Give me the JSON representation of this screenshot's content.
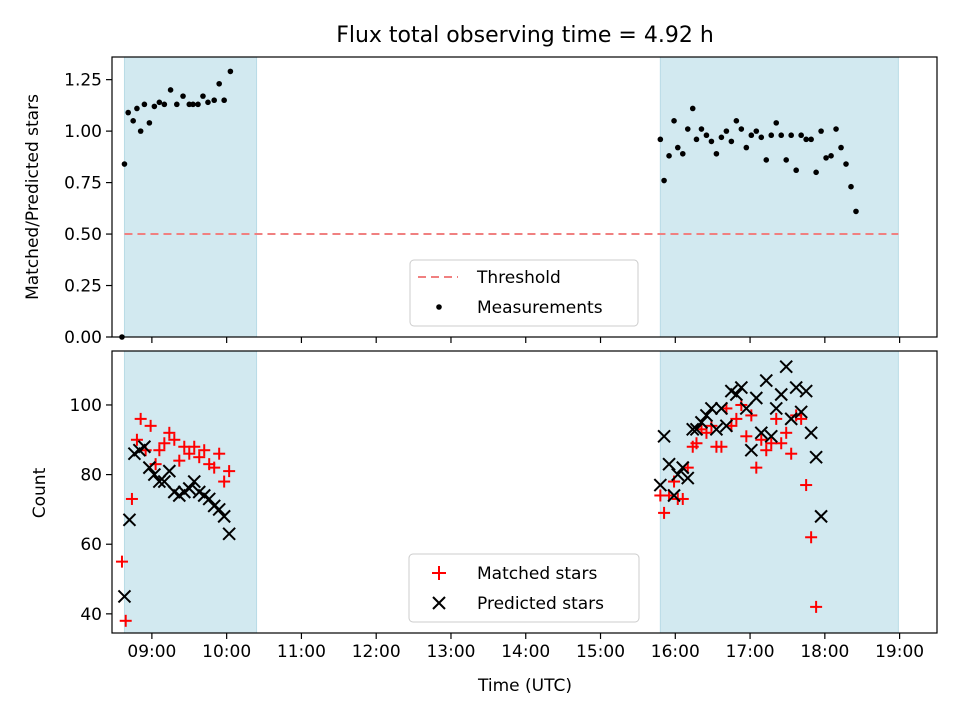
{
  "title": "Flux total observing time = 4.92 h",
  "chart_data": [
    {
      "type": "scatter",
      "panel": "top",
      "title": "Flux total observing time = 4.92 h",
      "xlabel": "",
      "ylabel": "Matched/Predicted stars",
      "xlim": [
        "08:28",
        "19:30"
      ],
      "ylim": [
        0,
        1.36
      ],
      "yticks": [
        "0.00",
        "0.25",
        "0.50",
        "0.75",
        "1.00",
        "1.25"
      ],
      "yticks_values": [
        0,
        0.25,
        0.5,
        0.75,
        1.0,
        1.25
      ],
      "grid": false,
      "legend_placement": "bottom-center",
      "shaded_spans": [
        [
          "08:38",
          "10:24"
        ],
        [
          "15:48",
          "18:59"
        ]
      ],
      "span_color": "#d2e9f0",
      "threshold": {
        "name": "Threshold",
        "value": 0.5,
        "color": "#f08080"
      },
      "series": [
        {
          "name": "Measurements",
          "marker": "dot",
          "color": "#000000",
          "points": [
            [
              "08:36",
              0.0
            ],
            [
              "08:38",
              0.84
            ],
            [
              "08:41",
              1.09
            ],
            [
              "08:45",
              1.05
            ],
            [
              "08:48",
              1.11
            ],
            [
              "08:51",
              1.0
            ],
            [
              "08:54",
              1.13
            ],
            [
              "08:58",
              1.04
            ],
            [
              "09:02",
              1.12
            ],
            [
              "09:06",
              1.14
            ],
            [
              "09:10",
              1.13
            ],
            [
              "09:15",
              1.2
            ],
            [
              "09:20",
              1.13
            ],
            [
              "09:25",
              1.17
            ],
            [
              "09:30",
              1.13
            ],
            [
              "09:33",
              1.13
            ],
            [
              "09:37",
              1.13
            ],
            [
              "09:41",
              1.17
            ],
            [
              "09:45",
              1.14
            ],
            [
              "09:50",
              1.15
            ],
            [
              "09:54",
              1.23
            ],
            [
              "09:58",
              1.15
            ],
            [
              "10:03",
              1.29
            ],
            [
              "15:48",
              0.96
            ],
            [
              "15:51",
              0.76
            ],
            [
              "15:55",
              0.88
            ],
            [
              "15:59",
              1.05
            ],
            [
              "16:02",
              0.92
            ],
            [
              "16:06",
              0.89
            ],
            [
              "16:10",
              1.01
            ],
            [
              "16:14",
              1.11
            ],
            [
              "16:17",
              0.96
            ],
            [
              "16:21",
              1.01
            ],
            [
              "16:25",
              0.98
            ],
            [
              "16:29",
              0.95
            ],
            [
              "16:33",
              0.89
            ],
            [
              "16:37",
              0.97
            ],
            [
              "16:41",
              1.0
            ],
            [
              "16:45",
              0.95
            ],
            [
              "16:49",
              1.05
            ],
            [
              "16:53",
              1.01
            ],
            [
              "16:57",
              0.92
            ],
            [
              "17:01",
              0.98
            ],
            [
              "17:05",
              1.0
            ],
            [
              "17:09",
              0.97
            ],
            [
              "17:13",
              0.86
            ],
            [
              "17:17",
              0.98
            ],
            [
              "17:21",
              1.04
            ],
            [
              "17:25",
              0.98
            ],
            [
              "17:29",
              0.86
            ],
            [
              "17:33",
              0.98
            ],
            [
              "17:37",
              0.81
            ],
            [
              "17:41",
              0.98
            ],
            [
              "17:45",
              0.96
            ],
            [
              "17:49",
              0.96
            ],
            [
              "17:53",
              0.8
            ],
            [
              "17:57",
              1.0
            ],
            [
              "18:01",
              0.87
            ],
            [
              "18:05",
              0.88
            ],
            [
              "18:09",
              1.01
            ],
            [
              "18:13",
              0.92
            ],
            [
              "18:17",
              0.84
            ],
            [
              "18:21",
              0.73
            ],
            [
              "18:25",
              0.61
            ]
          ]
        }
      ],
      "legend": [
        {
          "label": "Threshold",
          "kind": "dashed-line",
          "color": "#f08080"
        },
        {
          "label": "Measurements",
          "kind": "dot",
          "color": "#000000"
        }
      ]
    },
    {
      "type": "scatter",
      "panel": "bottom",
      "xlabel": "Time (UTC)",
      "ylabel": "Count",
      "xlim": [
        "08:28",
        "19:30"
      ],
      "ylim": [
        34.5,
        115.5
      ],
      "yticks": [
        "40",
        "60",
        "80",
        "100"
      ],
      "yticks_values": [
        40,
        60,
        80,
        100
      ],
      "xticks": [
        "09:00",
        "10:00",
        "11:00",
        "12:00",
        "13:00",
        "14:00",
        "15:00",
        "16:00",
        "17:00",
        "18:00",
        "19:00"
      ],
      "grid": false,
      "legend_placement": "bottom-center",
      "shaded_spans": [
        [
          "08:38",
          "10:24"
        ],
        [
          "15:48",
          "18:59"
        ]
      ],
      "span_color": "#d2e9f0",
      "series": [
        {
          "name": "Matched stars",
          "marker": "plus",
          "color": "#ff0000",
          "points": [
            [
              "08:36",
              55
            ],
            [
              "08:39",
              38
            ],
            [
              "08:44",
              73
            ],
            [
              "08:48",
              90
            ],
            [
              "08:51",
              96
            ],
            [
              "08:55",
              87
            ],
            [
              "08:59",
              94
            ],
            [
              "09:03",
              83
            ],
            [
              "09:06",
              87
            ],
            [
              "09:10",
              89
            ],
            [
              "09:14",
              92
            ],
            [
              "09:18",
              90
            ],
            [
              "09:22",
              84
            ],
            [
              "09:26",
              88
            ],
            [
              "09:30",
              86
            ],
            [
              "09:34",
              88
            ],
            [
              "09:38",
              85
            ],
            [
              "09:42",
              87
            ],
            [
              "09:46",
              83
            ],
            [
              "09:50",
              82
            ],
            [
              "09:54",
              86
            ],
            [
              "09:58",
              78
            ],
            [
              "10:02",
              81
            ],
            [
              "15:48",
              74
            ],
            [
              "15:51",
              69
            ],
            [
              "15:55",
              74
            ],
            [
              "15:59",
              78
            ],
            [
              "16:02",
              73
            ],
            [
              "16:06",
              73
            ],
            [
              "16:10",
              82
            ],
            [
              "16:14",
              88
            ],
            [
              "16:17",
              89
            ],
            [
              "16:21",
              93
            ],
            [
              "16:25",
              92
            ],
            [
              "16:29",
              94
            ],
            [
              "16:33",
              88
            ],
            [
              "16:37",
              88
            ],
            [
              "16:41",
              99
            ],
            [
              "16:45",
              94
            ],
            [
              "16:49",
              96
            ],
            [
              "16:53",
              100
            ],
            [
              "16:57",
              91
            ],
            [
              "17:01",
              97
            ],
            [
              "17:05",
              82
            ],
            [
              "17:09",
              90
            ],
            [
              "17:13",
              87
            ],
            [
              "17:17",
              89
            ],
            [
              "17:21",
              96
            ],
            [
              "17:25",
              89
            ],
            [
              "17:29",
              92
            ],
            [
              "17:33",
              86
            ],
            [
              "17:37",
              97
            ],
            [
              "17:41",
              96
            ],
            [
              "17:45",
              77
            ],
            [
              "17:49",
              62
            ],
            [
              "17:53",
              42
            ]
          ]
        },
        {
          "name": "Predicted stars",
          "marker": "x",
          "color": "#000000",
          "points": [
            [
              "08:38",
              45
            ],
            [
              "08:42",
              67
            ],
            [
              "08:46",
              86
            ],
            [
              "08:50",
              87
            ],
            [
              "08:54",
              88
            ],
            [
              "08:58",
              82
            ],
            [
              "09:02",
              80
            ],
            [
              "09:06",
              78
            ],
            [
              "09:10",
              78
            ],
            [
              "09:14",
              81
            ],
            [
              "09:18",
              75
            ],
            [
              "09:22",
              74
            ],
            [
              "09:26",
              75
            ],
            [
              "09:30",
              76
            ],
            [
              "09:34",
              78
            ],
            [
              "09:38",
              75
            ],
            [
              "09:42",
              74
            ],
            [
              "09:46",
              73
            ],
            [
              "09:50",
              71
            ],
            [
              "09:54",
              70
            ],
            [
              "09:58",
              68
            ],
            [
              "10:02",
              63
            ],
            [
              "15:48",
              77
            ],
            [
              "15:51",
              91
            ],
            [
              "15:55",
              83
            ],
            [
              "15:59",
              74
            ],
            [
              "16:02",
              80
            ],
            [
              "16:06",
              82
            ],
            [
              "16:10",
              79
            ],
            [
              "16:14",
              93
            ],
            [
              "16:17",
              93
            ],
            [
              "16:21",
              95
            ],
            [
              "16:25",
              97
            ],
            [
              "16:29",
              99
            ],
            [
              "16:33",
              93
            ],
            [
              "16:37",
              99
            ],
            [
              "16:41",
              94
            ],
            [
              "16:45",
              104
            ],
            [
              "16:49",
              103
            ],
            [
              "16:53",
              105
            ],
            [
              "16:57",
              99
            ],
            [
              "17:01",
              87
            ],
            [
              "17:05",
              102
            ],
            [
              "17:09",
              92
            ],
            [
              "17:13",
              107
            ],
            [
              "17:17",
              91
            ],
            [
              "17:21",
              99
            ],
            [
              "17:25",
              103
            ],
            [
              "17:29",
              111
            ],
            [
              "17:33",
              96
            ],
            [
              "17:37",
              105
            ],
            [
              "17:41",
              98
            ],
            [
              "17:45",
              104
            ],
            [
              "17:49",
              92
            ],
            [
              "17:53",
              85
            ],
            [
              "17:57",
              68
            ]
          ]
        }
      ],
      "legend": [
        {
          "label": "Matched stars",
          "kind": "plus",
          "color": "#ff0000"
        },
        {
          "label": "Predicted stars",
          "kind": "x",
          "color": "#000000"
        }
      ]
    }
  ]
}
